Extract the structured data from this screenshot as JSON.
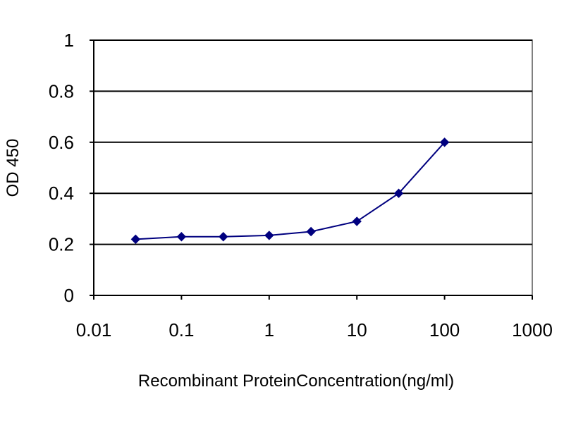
{
  "chart_data": {
    "type": "scatter",
    "title": "",
    "xlabel": "Recombinant ProteinConcentration(ng/ml)",
    "ylabel": "OD 450",
    "xscale": "log",
    "xlim": [
      0.01,
      1000
    ],
    "ylim": [
      0,
      1
    ],
    "xticks": [
      "0.01",
      "0.1",
      "1",
      "10",
      "100",
      "1000"
    ],
    "yticks": [
      "0",
      "0.2",
      "0.4",
      "0.6",
      "0.8",
      "1"
    ],
    "grid": "horizontal",
    "legend": "none",
    "series": [
      {
        "color": "#00007f",
        "x": [
          0.03,
          0.1,
          0.3,
          1,
          3,
          10,
          30,
          100
        ],
        "y": [
          0.22,
          0.23,
          0.23,
          0.235,
          0.25,
          0.29,
          0.4,
          0.6
        ]
      }
    ]
  }
}
